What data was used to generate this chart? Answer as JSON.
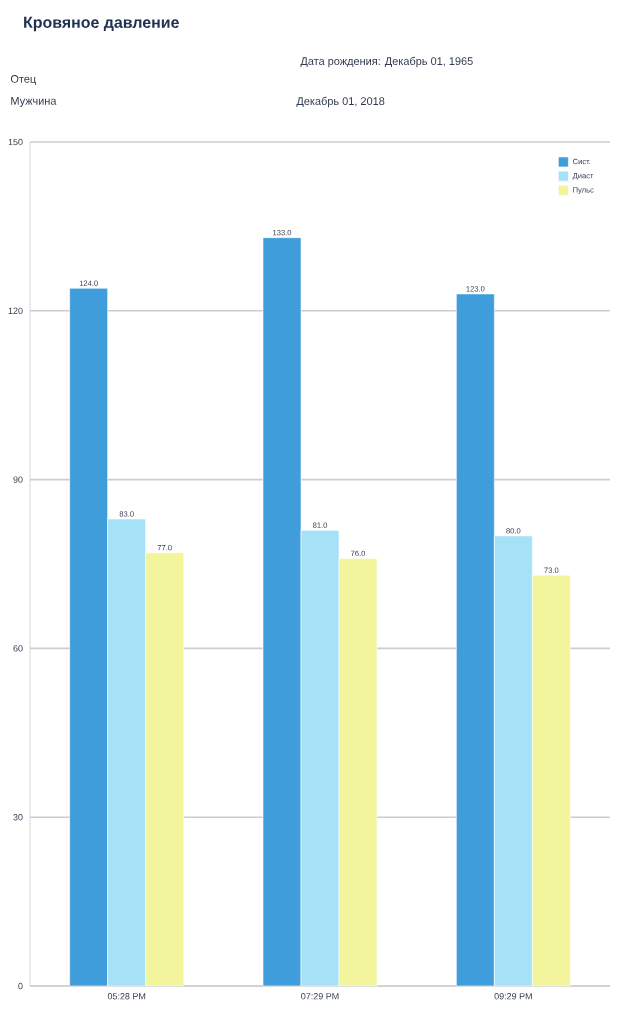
{
  "chart_data": {
    "type": "bar",
    "title": "Кровяное давление",
    "annotations": [
      "Дата рождения: Декабрь 01, 1965",
      "Отец",
      "Мужчина",
      "Декабрь 01, 2018"
    ],
    "categories": [
      "05:28 PM",
      "07:29 PM",
      "09:29 PM"
    ],
    "series": [
      {
        "name": "Сист.",
        "color": "#3f9ddc",
        "values": [
          124,
          133,
          123
        ],
        "value_labels": [
          "124.0",
          "133.0",
          "123.0"
        ]
      },
      {
        "name": "Диаст",
        "color": "#a6e2f7",
        "values": [
          83,
          81,
          80
        ],
        "value_labels": [
          "83.0",
          "81.0",
          "80.0"
        ]
      },
      {
        "name": "Пульс",
        "color": "#f2f59c",
        "values": [
          77,
          76,
          73
        ],
        "value_labels": [
          "77.0",
          "76.0",
          "73.0"
        ]
      }
    ],
    "ylim": [
      0,
      150
    ],
    "yticks": [
      0,
      30,
      60,
      90,
      120,
      150
    ],
    "grid": "y",
    "legend": "top right"
  }
}
